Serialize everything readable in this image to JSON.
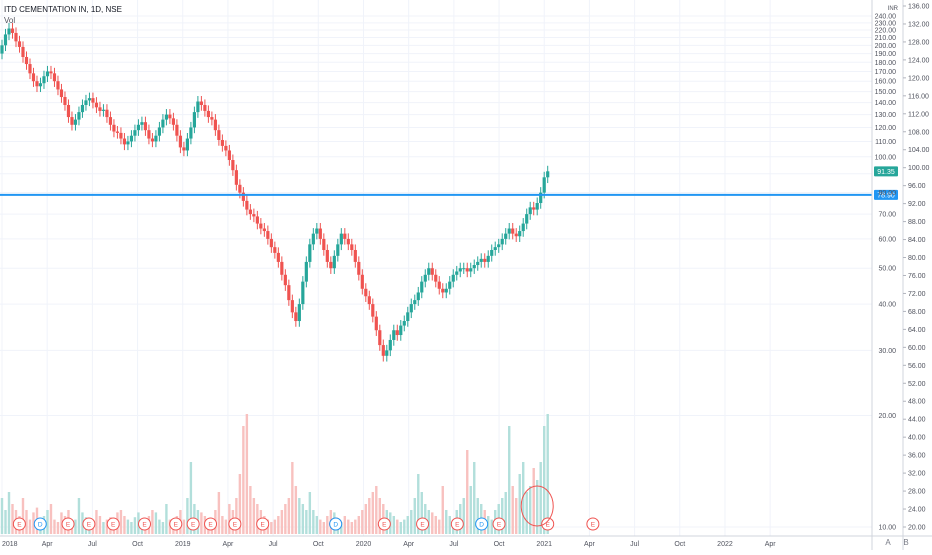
{
  "legend": {
    "symbol_line": "ITD CEMENTATION IN, 1D, NSE",
    "volume_label": "Vol"
  },
  "currency_label": "INR",
  "corner_buttons": {
    "auto": "A",
    "log": "B"
  },
  "colors": {
    "up": "#26a69a",
    "down": "#ef5350",
    "vol_up": "#b2dfdb",
    "vol_down": "#f8c1bf",
    "hline": "#2196f3",
    "grid": "#f0f3fa",
    "axis_text": "#50535e",
    "last_price_bg": "#26a69a",
    "earnings": "#ef5350",
    "dividend": "#2196f3"
  },
  "chart_data": {
    "type": "candlestick",
    "title": "ITD CEMENTATION IN, 1D, NSE",
    "x_ticks": [
      "2018",
      "Apr",
      "Jul",
      "Oct",
      "2019",
      "Apr",
      "Jul",
      "Oct",
      "2020",
      "Apr",
      "Jul",
      "Oct",
      "2021",
      "Apr",
      "Jul",
      "Oct",
      "2022",
      "Apr"
    ],
    "x_tick_index": [
      0,
      13,
      26,
      39,
      52,
      65,
      78,
      91,
      104,
      117,
      130,
      143,
      156,
      169,
      182,
      195,
      208,
      221
    ],
    "x_range": [
      0,
      248
    ],
    "y_scale": "log",
    "y_ticks_left": [
      240,
      230,
      220,
      210,
      200,
      190,
      180,
      170,
      160,
      150,
      140,
      130,
      120,
      110,
      100,
      90,
      80,
      70,
      60,
      50,
      40,
      30,
      20,
      10
    ],
    "y_ticks_left_labels": [
      "240.00",
      "230.00",
      "220.00",
      "210.00",
      "200.00",
      "190.00",
      "180.00",
      "170.00",
      "160.00",
      "150.00",
      "140.00",
      "130.00",
      "120.00",
      "110.00",
      "100.00",
      "90.00",
      "80.00",
      "70.00",
      "60.00",
      "50.00",
      "40.00",
      "30.00",
      "20.00",
      "10.00"
    ],
    "y_ticks_right_labels": [
      "136.00",
      "132.00",
      "128.00",
      "124.00",
      "120.00",
      "116.00",
      "112.00",
      "108.00",
      "104.00",
      "100.00",
      "96.00",
      "92.00",
      "88.00",
      "84.00",
      "80.00",
      "76.00",
      "72.00",
      "68.00",
      "64.00",
      "60.00",
      "56.00",
      "52.00",
      "48.00",
      "44.00",
      "40.00",
      "36.00",
      "32.00",
      "28.00",
      "24.00",
      "20.00"
    ],
    "closes": [
      200,
      214,
      222,
      216,
      205,
      198,
      186,
      178,
      168,
      160,
      155,
      158,
      165,
      170,
      168,
      160,
      152,
      145,
      138,
      128,
      122,
      126,
      132,
      138,
      142,
      144,
      140,
      136,
      133,
      134,
      128,
      122,
      117,
      116,
      112,
      108,
      110,
      114,
      118,
      122,
      124,
      118,
      112,
      110,
      114,
      120,
      126,
      130,
      127,
      122,
      114,
      106,
      104,
      112,
      120,
      132,
      141,
      138,
      133,
      128,
      126,
      118,
      111,
      107,
      104,
      98,
      92,
      84,
      80,
      76,
      72,
      70,
      69,
      66,
      64,
      63,
      60,
      57,
      55,
      52,
      48,
      45,
      41,
      38,
      36,
      40,
      46,
      52,
      58,
      62,
      64,
      60,
      56,
      52,
      50,
      54,
      58,
      62,
      60,
      58,
      56,
      52,
      48,
      44,
      42,
      40,
      37,
      34,
      31,
      29,
      30,
      32,
      34,
      33,
      35,
      36,
      38,
      40,
      41,
      43,
      46,
      48,
      50,
      48,
      46,
      44,
      43,
      44,
      46,
      48,
      49,
      50,
      50,
      49,
      50,
      51,
      52,
      53,
      52,
      54,
      56,
      57,
      58,
      60,
      62,
      64,
      62,
      61,
      63,
      66,
      70,
      73,
      72,
      75,
      80,
      88,
      91.35
    ],
    "volume_relative": [
      0.3,
      0.2,
      0.35,
      0.25,
      0.2,
      0.15,
      0.3,
      0.2,
      0.12,
      0.18,
      0.22,
      0.1,
      0.15,
      0.2,
      0.25,
      0.12,
      0.1,
      0.18,
      0.15,
      0.2,
      0.1,
      0.12,
      0.3,
      0.18,
      0.14,
      0.12,
      0.1,
      0.2,
      0.15,
      0.1,
      0.12,
      0.14,
      0.1,
      0.18,
      0.2,
      0.15,
      0.12,
      0.1,
      0.14,
      0.18,
      0.12,
      0.1,
      0.15,
      0.2,
      0.18,
      0.12,
      0.1,
      0.25,
      0.12,
      0.1,
      0.15,
      0.2,
      0.12,
      0.3,
      0.6,
      0.25,
      0.2,
      0.18,
      0.15,
      0.12,
      0.1,
      0.2,
      0.35,
      0.15,
      0.12,
      0.25,
      0.2,
      0.3,
      0.5,
      0.9,
      1.0,
      0.4,
      0.3,
      0.25,
      0.2,
      0.15,
      0.12,
      0.1,
      0.12,
      0.15,
      0.2,
      0.25,
      0.3,
      0.6,
      0.4,
      0.3,
      0.25,
      0.2,
      0.35,
      0.2,
      0.15,
      0.12,
      0.1,
      0.15,
      0.2,
      0.18,
      0.12,
      0.1,
      0.15,
      0.12,
      0.1,
      0.12,
      0.15,
      0.2,
      0.25,
      0.3,
      0.35,
      0.4,
      0.3,
      0.25,
      0.2,
      0.18,
      0.15,
      0.12,
      0.1,
      0.12,
      0.15,
      0.2,
      0.3,
      0.5,
      0.35,
      0.25,
      0.2,
      0.18,
      0.15,
      0.12,
      0.4,
      0.2,
      0.15,
      0.12,
      0.2,
      0.25,
      0.3,
      0.7,
      0.4,
      0.6,
      0.3,
      0.25,
      0.2,
      0.15,
      0.12,
      0.2,
      0.25,
      0.3,
      0.35,
      0.9,
      0.4,
      0.3,
      0.5,
      0.6,
      0.35,
      0.4,
      0.55,
      0.45,
      0.6,
      0.9,
      1.0
    ],
    "horizontal_line": {
      "value": 78.9,
      "label": "78.90"
    },
    "last_price": {
      "value": 91.35,
      "label": "91.35"
    },
    "earnings_markers": [
      5,
      19,
      25,
      32,
      41,
      50,
      55,
      60,
      67,
      75,
      96,
      110,
      121,
      131,
      143,
      157,
      170
    ],
    "dividend_markers": [
      11,
      96,
      138
    ],
    "earnings_letter": "E",
    "dividend_letter": "D",
    "highlight_circle_bar": 153
  }
}
